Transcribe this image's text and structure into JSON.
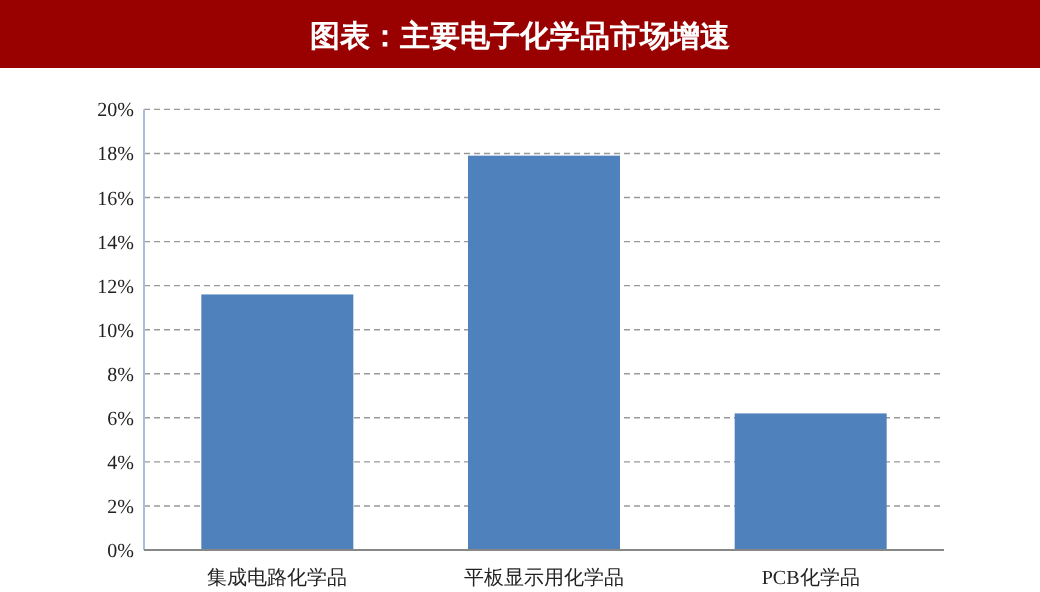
{
  "chart_data": {
    "type": "bar",
    "title": "图表：主要电子化学品市场增速",
    "categories": [
      "集成电路化学品",
      "平板显示用化学品",
      "PCB化学品"
    ],
    "values": [
      11.6,
      17.9,
      6.2
    ],
    "color": "#4f81bd",
    "ylim": [
      0,
      20
    ],
    "yticks": [
      {
        "value": 0,
        "label": "0%"
      },
      {
        "value": 2,
        "label": "2%"
      },
      {
        "value": 4,
        "label": "4%"
      },
      {
        "value": 6,
        "label": "6%"
      },
      {
        "value": 8,
        "label": "8%"
      },
      {
        "value": 10,
        "label": "10%"
      },
      {
        "value": 12,
        "label": "12%"
      },
      {
        "value": 14,
        "label": "14%"
      },
      {
        "value": 16,
        "label": "16%"
      },
      {
        "value": 18,
        "label": "18%"
      },
      {
        "value": 20,
        "label": "20%"
      }
    ],
    "grid": "y"
  }
}
